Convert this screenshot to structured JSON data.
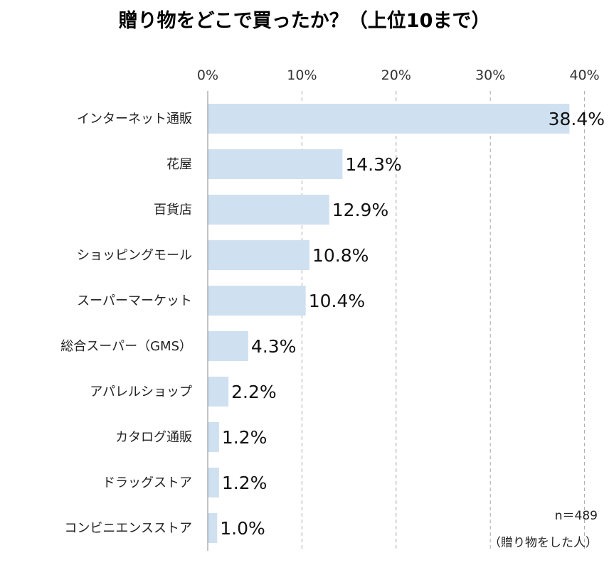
{
  "chart_data": {
    "type": "bar",
    "orientation": "horizontal",
    "title": "贈り物をどこで買ったか？（上位10まで）",
    "categories": [
      "インターネット通販",
      "花屋",
      "百貨店",
      "ショッピングモール",
      "スーパーマーケット",
      "総合スーパー（GMS）",
      "アパレルショップ",
      "カタログ通販",
      "ドラッグストア",
      "コンビニエンスストア"
    ],
    "values": [
      38.4,
      14.3,
      12.9,
      10.8,
      10.4,
      4.3,
      2.2,
      1.2,
      1.2,
      1.0
    ],
    "value_labels": [
      "38.4%",
      "14.3%",
      "12.9%",
      "10.8%",
      "10.4%",
      "4.3%",
      "2.2%",
      "1.2%",
      "1.2%",
      "1.0%"
    ],
    "xlim": [
      0,
      40
    ],
    "x_ticks": [
      "0%",
      "10%",
      "20%",
      "30%",
      "40%"
    ],
    "x_tick_values": [
      0,
      10,
      20,
      30,
      40
    ],
    "axis_position": "top",
    "grid": true,
    "bar_color": "#cfe0f1",
    "grid_color": "#a9a9a9",
    "notes": [
      "n＝489",
      "（贈り物をした人）"
    ]
  }
}
